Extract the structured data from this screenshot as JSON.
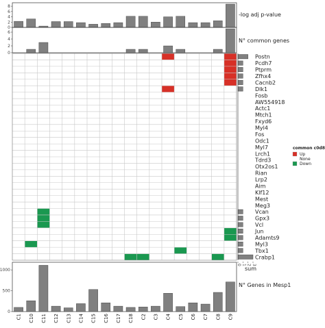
{
  "chart_data": [
    {
      "type": "bar",
      "panel": "top",
      "title": "-log adj p-value",
      "categories": [
        "C1",
        "C10",
        "C11",
        "C12",
        "C13",
        "C14",
        "C15",
        "C16",
        "C17",
        "C18",
        "C2",
        "C3",
        "C4",
        "C5",
        "C6",
        "C7",
        "C8",
        "C9"
      ],
      "values": [
        2.3,
        3.2,
        0.5,
        2.2,
        2.2,
        1.8,
        1.2,
        1.5,
        1.8,
        4.2,
        4.2,
        2.0,
        4.0,
        4.2,
        1.8,
        1.8,
        2.5,
        8.8
      ],
      "ylim": [
        0,
        8.8
      ],
      "yticks": [
        "0",
        "2",
        "4",
        "6",
        "8"
      ]
    },
    {
      "type": "bar",
      "panel": "middle",
      "title": "N° common genes",
      "categories": [
        "C1",
        "C10",
        "C11",
        "C12",
        "C13",
        "C14",
        "C15",
        "C16",
        "C17",
        "C18",
        "C2",
        "C3",
        "C4",
        "C5",
        "C6",
        "C7",
        "C8",
        "C9"
      ],
      "values": [
        0,
        1,
        3,
        0,
        0,
        0,
        0,
        0,
        0,
        1,
        1,
        0,
        2,
        1,
        0,
        0,
        1,
        7
      ],
      "ylim": [
        0,
        7
      ],
      "yticks": [
        "0",
        "2",
        "4",
        "6"
      ]
    },
    {
      "type": "heatmap",
      "panel": "center",
      "columns": [
        "C1",
        "C10",
        "C11",
        "C12",
        "C13",
        "C14",
        "C15",
        "C16",
        "C17",
        "C18",
        "C2",
        "C3",
        "C4",
        "C5",
        "C6",
        "C7",
        "C8",
        "C9"
      ],
      "rows": [
        "Postn",
        "Pcdh7",
        "Ptprm",
        "Zfhx4",
        "Cacnb2",
        "Dlk1",
        "Fosb",
        "AW554918",
        "Actc1",
        "Mtch1",
        "Fxyd6",
        "Myl4",
        "Fos",
        "Odc1",
        "Myl7",
        "Lrch1",
        "Tdrd3",
        "Otx2os1",
        "Rian",
        "Lrp2",
        "Aim",
        "Klf12",
        "Mest",
        "Meg3",
        "Vcan",
        "Gpx3",
        "Vcl",
        "Jun",
        "Adamts9",
        "Myl3",
        "Tbx1",
        "Crabp1"
      ],
      "cells": [
        {
          "row": "Postn",
          "col": "C4",
          "value": "Up"
        },
        {
          "row": "Postn",
          "col": "C9",
          "value": "Up"
        },
        {
          "row": "Pcdh7",
          "col": "C9",
          "value": "Up"
        },
        {
          "row": "Ptprm",
          "col": "C9",
          "value": "Up"
        },
        {
          "row": "Zfhx4",
          "col": "C9",
          "value": "Up"
        },
        {
          "row": "Cacnb2",
          "col": "C9",
          "value": "Up"
        },
        {
          "row": "Dlk1",
          "col": "C4",
          "value": "Up"
        },
        {
          "row": "Vcan",
          "col": "C11",
          "value": "Down"
        },
        {
          "row": "Gpx3",
          "col": "C11",
          "value": "Down"
        },
        {
          "row": "Vcl",
          "col": "C11",
          "value": "Down"
        },
        {
          "row": "Jun",
          "col": "C9",
          "value": "Down"
        },
        {
          "row": "Adamts9",
          "col": "C9",
          "value": "Down"
        },
        {
          "row": "Myl3",
          "col": "C10",
          "value": "Down"
        },
        {
          "row": "Tbx1",
          "col": "C5",
          "value": "Down"
        },
        {
          "row": "Crabp1",
          "col": "C18",
          "value": "Down"
        },
        {
          "row": "Crabp1",
          "col": "C2",
          "value": "Down"
        },
        {
          "row": "Crabp1",
          "col": "C8",
          "value": "Down"
        }
      ]
    },
    {
      "type": "bar",
      "panel": "right",
      "orientation": "horizontal",
      "xlabel": "sum",
      "categories": [
        "Postn",
        "Pcdh7",
        "Ptprm",
        "Zfhx4",
        "Cacnb2",
        "Dlk1",
        "Fosb",
        "AW554918",
        "Actc1",
        "Mtch1",
        "Fxyd6",
        "Myl4",
        "Fos",
        "Odc1",
        "Myl7",
        "Lrch1",
        "Tdrd3",
        "Otx2os1",
        "Rian",
        "Lrp2",
        "Aim",
        "Klf12",
        "Mest",
        "Meg3",
        "Vcan",
        "Gpx3",
        "Vcl",
        "Jun",
        "Adamts9",
        "Myl3",
        "Tbx1",
        "Crabp1"
      ],
      "values": [
        2,
        1,
        1,
        1,
        1,
        1,
        0,
        0,
        0,
        0,
        0,
        0,
        0,
        0,
        0,
        0,
        0,
        0,
        0,
        0,
        0,
        0,
        0,
        0,
        1,
        1,
        1,
        1,
        1,
        1,
        1,
        3
      ],
      "xlim": [
        0,
        3
      ],
      "xticks": [
        "0",
        "1",
        "2",
        "3"
      ]
    },
    {
      "type": "bar",
      "panel": "bottom",
      "title": "N° Genes in Mesp1",
      "categories": [
        "C1",
        "C10",
        "C11",
        "C12",
        "C13",
        "C14",
        "C15",
        "C16",
        "C17",
        "C18",
        "C2",
        "C3",
        "C4",
        "C5",
        "C6",
        "C7",
        "C8",
        "C9"
      ],
      "values": [
        100,
        260,
        1110,
        130,
        90,
        190,
        530,
        210,
        130,
        100,
        110,
        130,
        440,
        120,
        210,
        180,
        460,
        710
      ],
      "ylim": [
        0,
        1150
      ],
      "yticks": [
        "0",
        "500",
        "1000"
      ]
    }
  ],
  "legend": {
    "title": "common c0d8",
    "items": [
      {
        "label": "Up",
        "color": "#d73027"
      },
      {
        "label": "None",
        "color": "#ffffff"
      },
      {
        "label": "Down",
        "color": "#1a9850"
      }
    ]
  },
  "colors": {
    "bar_fill": "#808080",
    "bar_stroke": "#333333",
    "grid": "#c8c8c8",
    "up": "#d73027",
    "down": "#1a9850"
  }
}
